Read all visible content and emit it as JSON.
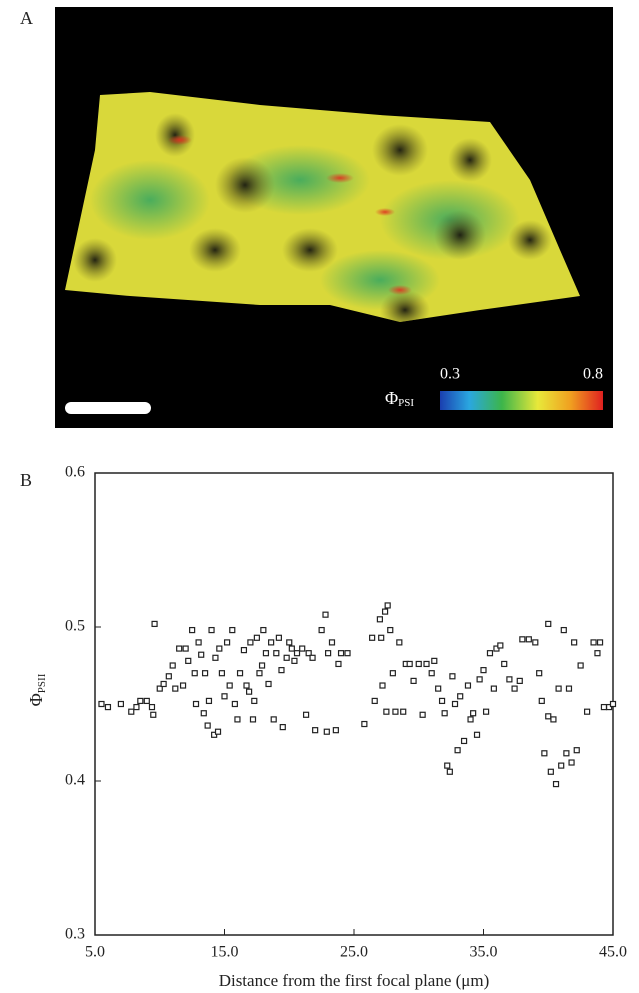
{
  "chart_data": [
    {
      "type": "image",
      "label": "A",
      "colorbar": {
        "label": "Φ",
        "label_sub": "PSI",
        "lim": [
          0.3,
          0.8
        ],
        "ticks": [
          0.3,
          0.8
        ]
      }
    },
    {
      "type": "scatter",
      "label": "B",
      "xlabel": "Distance from the first focal plane (μm)",
      "ylabel": "Φ",
      "ylabel_sub": "PSII",
      "xlim": [
        5,
        45
      ],
      "ylim": [
        0.3,
        0.6
      ],
      "xticks": [
        {
          "value": 5,
          "label": "5.0"
        },
        {
          "value": 15,
          "label": "15.0"
        },
        {
          "value": 25,
          "label": "25.0"
        },
        {
          "value": 35,
          "label": "35.0"
        },
        {
          "value": 45,
          "label": "45.0"
        }
      ],
      "yticks": [
        0.3,
        0.4,
        0.5,
        0.6
      ],
      "color": "#222222",
      "x": [
        5.5,
        6,
        7,
        7.8,
        8.2,
        8.5,
        9,
        9.4,
        9.5,
        9.6,
        10,
        10.3,
        10.7,
        11,
        11.2,
        11.5,
        11.8,
        12,
        12.2,
        12.5,
        12.7,
        12.8,
        13,
        13.2,
        13.4,
        13.5,
        13.7,
        13.8,
        14,
        14.2,
        14.3,
        14.5,
        14.6,
        14.8,
        15,
        15.2,
        15.4,
        15.6,
        15.8,
        16,
        16.2,
        16.5,
        16.7,
        16.9,
        17,
        17.2,
        17.3,
        17.5,
        17.7,
        17.9,
        18,
        18.2,
        18.4,
        18.6,
        18.8,
        19,
        19.2,
        19.4,
        19.5,
        19.8,
        20,
        20.2,
        20.4,
        20.6,
        21,
        21.3,
        21.5,
        21.8,
        22,
        22.5,
        22.8,
        22.9,
        23,
        23.3,
        23.6,
        23.8,
        24,
        24.5,
        25.8,
        26.4,
        26.6,
        27,
        27.1,
        27.2,
        27.4,
        27.5,
        27.6,
        27.8,
        28,
        28.2,
        28.5,
        28.8,
        29,
        29.3,
        29.6,
        30,
        30.3,
        30.6,
        31,
        31.2,
        31.5,
        31.8,
        32,
        32.2,
        32.4,
        32.6,
        32.8,
        33,
        33.2,
        33.5,
        33.8,
        34,
        34.2,
        34.5,
        34.7,
        35,
        35.2,
        35.5,
        35.8,
        36,
        36.3,
        36.6,
        37,
        37.4,
        37.8,
        38,
        38.5,
        39,
        39.3,
        39.5,
        39.7,
        40,
        40,
        40.2,
        40.4,
        40.6,
        40.8,
        41,
        41.2,
        41.4,
        41.6,
        41.8,
        42,
        42.2,
        42.5,
        43,
        43.5,
        43.8,
        44,
        44.3,
        44.7,
        45
      ],
      "y": [
        0.45,
        0.448,
        0.45,
        0.445,
        0.448,
        0.452,
        0.452,
        0.448,
        0.443,
        0.502,
        0.46,
        0.463,
        0.468,
        0.475,
        0.46,
        0.486,
        0.462,
        0.486,
        0.478,
        0.498,
        0.47,
        0.45,
        0.49,
        0.482,
        0.444,
        0.47,
        0.436,
        0.452,
        0.498,
        0.43,
        0.48,
        0.432,
        0.486,
        0.47,
        0.455,
        0.49,
        0.462,
        0.498,
        0.45,
        0.44,
        0.47,
        0.485,
        0.462,
        0.458,
        0.49,
        0.44,
        0.452,
        0.493,
        0.47,
        0.475,
        0.498,
        0.483,
        0.463,
        0.49,
        0.44,
        0.483,
        0.493,
        0.472,
        0.435,
        0.48,
        0.49,
        0.486,
        0.478,
        0.483,
        0.486,
        0.443,
        0.483,
        0.48,
        0.433,
        0.498,
        0.508,
        0.432,
        0.483,
        0.49,
        0.433,
        0.476,
        0.483,
        0.483,
        0.437,
        0.493,
        0.452,
        0.505,
        0.493,
        0.462,
        0.51,
        0.445,
        0.514,
        0.498,
        0.47,
        0.445,
        0.49,
        0.445,
        0.476,
        0.476,
        0.465,
        0.476,
        0.443,
        0.476,
        0.47,
        0.478,
        0.46,
        0.452,
        0.444,
        0.41,
        0.406,
        0.468,
        0.45,
        0.42,
        0.455,
        0.426,
        0.462,
        0.44,
        0.444,
        0.43,
        0.466,
        0.472,
        0.445,
        0.483,
        0.46,
        0.486,
        0.488,
        0.476,
        0.466,
        0.46,
        0.465,
        0.492,
        0.492,
        0.49,
        0.47,
        0.452,
        0.418,
        0.442,
        0.502,
        0.406,
        0.44,
        0.398,
        0.46,
        0.41,
        0.498,
        0.418,
        0.46,
        0.412,
        0.49,
        0.42,
        0.475,
        0.445,
        0.49,
        0.483,
        0.49,
        0.448,
        0.448,
        0.45
      ]
    }
  ]
}
